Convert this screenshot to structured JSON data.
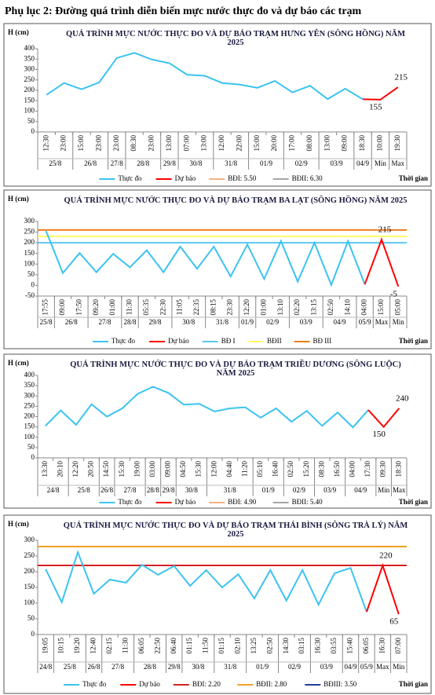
{
  "heading": "Phụ lục 2: Đường quá trình diễn biến mực nước thực đo và dự báo các trạm",
  "chart_data": [
    {
      "type": "line",
      "title": "QUÁ TRÌNH MỰC NƯỚC THỰC ĐO VÀ DỰ BÁO TRẠM HƯNG YÊN  (SÔNG HỒNG)  NĂM 2025",
      "y_label": "H (cm)",
      "x_label": "Thời gian",
      "categories": [
        "12:30",
        "23:00",
        "15:00",
        "23:00",
        "23:00",
        "08:30",
        "23:00",
        "13:00",
        "07:00",
        "13:00",
        "12:00",
        "22:00",
        "15:00",
        "20:00",
        "17:00",
        "08:00",
        "13:00",
        "09:00",
        "18:30",
        "10:00",
        "19:30"
      ],
      "dates": [
        "25/8",
        null,
        "26/8",
        null,
        "27/8",
        "28/8",
        null,
        "29/8",
        "30/8",
        null,
        "31/8",
        null,
        "01/9",
        null,
        "02/9",
        null,
        "03/9",
        null,
        "04/9",
        "Min",
        "Max"
      ],
      "series": [
        {
          "name": "Thực đo",
          "color": "#3cc3f0",
          "values": [
            178,
            235,
            205,
            238,
            355,
            380,
            348,
            330,
            275,
            270,
            235,
            228,
            212,
            245,
            190,
            222,
            158,
            208,
            157,
            null,
            null
          ]
        },
        {
          "name": "Dự báo",
          "color": "#ff0000",
          "values": [
            null,
            null,
            null,
            null,
            null,
            null,
            null,
            null,
            null,
            null,
            null,
            null,
            null,
            null,
            null,
            null,
            null,
            null,
            157,
            155,
            215
          ],
          "value_labels": [
            null,
            null,
            null,
            null,
            null,
            null,
            null,
            null,
            null,
            null,
            null,
            null,
            null,
            null,
            null,
            null,
            null,
            null,
            null,
            "155",
            "215"
          ]
        }
      ],
      "thresholds": [
        {
          "name": "BĐI: 5.50",
          "color": "#f4b183",
          "value": 550
        },
        {
          "name": "BĐII: 6.30",
          "color": "#a6a6a6",
          "value": 630
        }
      ],
      "ylim": [
        0,
        400
      ],
      "yticks": [
        0,
        50,
        100,
        150,
        200,
        250,
        300,
        350,
        400
      ]
    },
    {
      "type": "line",
      "title": "QUÁ TRÌNH MỰC NƯỚC THỰC ĐO VÀ DỰ BÁO TRẠM BA LẠT (SÔNG HỒNG) NĂM 2025",
      "y_label": "H (cm)",
      "x_label": "Thời gian",
      "categories": [
        "17:55",
        "09:00",
        "17:50",
        "09:20",
        "01:00",
        "11:30",
        "05:35",
        "22:30",
        "11:05",
        "22:35",
        "08:15",
        "23:30",
        "12:20",
        "01:00",
        "13:10",
        "02:20",
        "13:15",
        "02:50",
        "14:10",
        "04:00",
        "15:00",
        "05:00"
      ],
      "dates": [
        "25/8",
        "26/8",
        null,
        "27/8",
        null,
        "28/8",
        "29/8",
        null,
        "30/8",
        null,
        "31/8",
        null,
        "01/9",
        "02/9",
        null,
        "03/9",
        null,
        "04/9",
        null,
        "05/9",
        "Max",
        "Min"
      ],
      "series": [
        {
          "name": "Thực đo",
          "color": "#3cc3f0",
          "values": [
            255,
            58,
            152,
            62,
            148,
            85,
            165,
            62,
            182,
            78,
            182,
            42,
            192,
            30,
            208,
            18,
            200,
            2,
            208,
            5,
            null,
            null
          ]
        },
        {
          "name": "Dự báo",
          "color": "#ff0000",
          "values": [
            null,
            null,
            null,
            null,
            null,
            null,
            null,
            null,
            null,
            null,
            null,
            null,
            null,
            null,
            null,
            null,
            null,
            null,
            null,
            5,
            215,
            -5
          ],
          "value_labels": [
            null,
            null,
            null,
            null,
            null,
            null,
            null,
            null,
            null,
            null,
            null,
            null,
            null,
            null,
            null,
            null,
            null,
            null,
            null,
            null,
            "215",
            "-5"
          ]
        }
      ],
      "thresholds": [
        {
          "name": "BĐ I",
          "color": "#5bc8f5",
          "value": 200
        },
        {
          "name": "BĐII",
          "color": "#ffff66",
          "value": 230
        },
        {
          "name": "BĐ III",
          "color": "#f07c1e",
          "value": 260
        }
      ],
      "ylim": [
        -50,
        300
      ],
      "yticks": [
        -50,
        0,
        50,
        100,
        150,
        200,
        250,
        300
      ]
    },
    {
      "type": "line",
      "title": "QUÁ TRÌNH MỰC NƯỚC THỰC ĐO VÀ DỰ BÁO TRẠM  TRIỀU DƯƠNG (SÔNG LUỘC) NĂM 2025",
      "y_label": "H (cm)",
      "x_label": "Thời gian",
      "categories": [
        "13:30",
        "20:10",
        "12:20",
        "20:50",
        "14:50",
        "15:30",
        "19:00",
        "03:00",
        "09:00",
        "04:50",
        "15:30",
        "12:00",
        "04:40",
        "11:20",
        "05:10",
        "16:40",
        "02:50",
        "15:20",
        "08:30",
        "16:50",
        "04:00",
        "17:30",
        "09:30",
        "18:30"
      ],
      "dates": [
        "24/8",
        null,
        "25/8",
        null,
        "26/8",
        "27/8",
        null,
        "28/8",
        "29/8",
        "30/8",
        null,
        "31/8",
        null,
        null,
        "01/9",
        null,
        "02/9",
        null,
        "03/9",
        null,
        "04/9",
        null,
        "Min",
        "Max"
      ],
      "series": [
        {
          "name": "Thực đo",
          "color": "#3cc3f0",
          "values": [
            155,
            230,
            160,
            260,
            200,
            240,
            310,
            345,
            315,
            258,
            262,
            225,
            240,
            245,
            195,
            240,
            175,
            228,
            155,
            220,
            148,
            232,
            null,
            null
          ]
        },
        {
          "name": "Dự báo",
          "color": "#ff0000",
          "values": [
            null,
            null,
            null,
            null,
            null,
            null,
            null,
            null,
            null,
            null,
            null,
            null,
            null,
            null,
            null,
            null,
            null,
            null,
            null,
            null,
            null,
            232,
            150,
            240
          ],
          "value_labels": [
            null,
            null,
            null,
            null,
            null,
            null,
            null,
            null,
            null,
            null,
            null,
            null,
            null,
            null,
            null,
            null,
            null,
            null,
            null,
            null,
            null,
            null,
            "150",
            "240"
          ]
        }
      ],
      "thresholds": [
        {
          "name": "BĐI: 4.90",
          "color": "#f4b183",
          "value": 490
        },
        {
          "name": "BĐII: 5.40",
          "color": "#a6a6a6",
          "value": 540
        }
      ],
      "ylim": [
        0,
        400
      ],
      "yticks": [
        0,
        50,
        100,
        150,
        200,
        250,
        300,
        350,
        400
      ]
    },
    {
      "type": "line",
      "title": "QUÁ TRÌNH MỰC NƯỚC THỰC ĐO VÀ DỰ BÁO TRẠM THÁI BÌNH (SÔNG TRÀ LÝ) NĂM 2025",
      "y_label": "H (cm)",
      "x_label": "Thời gian",
      "categories": [
        "19:05",
        "10:15",
        "19:20",
        "12:40",
        "02:15",
        "11:30",
        "06:05",
        "22:50",
        "06:40",
        "01:15",
        "11:50",
        "01:15",
        "02:10",
        "13:25",
        "02:50",
        "14:30",
        "03:15",
        "16:30",
        "03:55",
        "15:40",
        "06:05",
        "16:30",
        "07:00"
      ],
      "dates": [
        "24/8",
        "25/8",
        null,
        "26/8",
        "27/8",
        null,
        "28/8",
        null,
        "29/8",
        "30/8",
        null,
        "31/8",
        null,
        "01/9",
        null,
        "02/9",
        null,
        "03/9",
        null,
        "04/9",
        "05/9",
        "Max",
        "Min"
      ],
      "series": [
        {
          "name": "Thực đo",
          "color": "#3cc3f0",
          "values": [
            208,
            103,
            262,
            130,
            175,
            165,
            222,
            190,
            218,
            155,
            205,
            150,
            192,
            115,
            205,
            108,
            205,
            95,
            195,
            212,
            72,
            null,
            null
          ]
        },
        {
          "name": "Dự báo",
          "color": "#ff0000",
          "values": [
            null,
            null,
            null,
            null,
            null,
            null,
            null,
            null,
            null,
            null,
            null,
            null,
            null,
            null,
            null,
            null,
            null,
            null,
            null,
            null,
            72,
            220,
            65
          ],
          "value_labels": [
            null,
            null,
            null,
            null,
            null,
            null,
            null,
            null,
            null,
            null,
            null,
            null,
            null,
            null,
            null,
            null,
            null,
            null,
            null,
            null,
            null,
            "220",
            "65"
          ]
        }
      ],
      "thresholds": [
        {
          "name": "BĐI: 2.20",
          "color": "#d62020",
          "value": 220
        },
        {
          "name": "BĐII: 2.80",
          "color": "#f0a020",
          "value": 280
        },
        {
          "name": "BĐIII: 3.50",
          "color": "#1f3f9f",
          "value": 350
        }
      ],
      "ylim": [
        0,
        300
      ],
      "yticks": [
        0,
        50,
        100,
        150,
        200,
        250,
        300
      ]
    }
  ]
}
